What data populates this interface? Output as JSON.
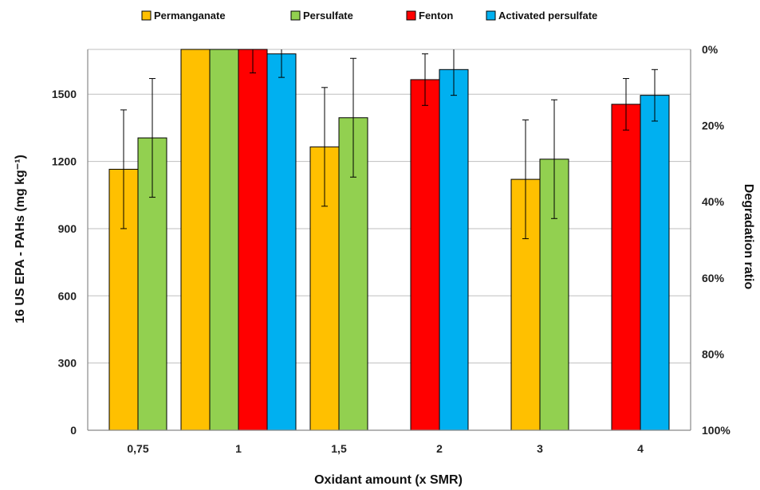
{
  "chart_data": {
    "type": "bar",
    "categories": [
      "0,75",
      "1",
      "1,5",
      "2",
      "3",
      "4"
    ],
    "xlabel": "Oxidant amount (x SMR)",
    "ylabel": "16 US EPA - PAHs (mg kg⁻¹)",
    "y2label": "Degradation ratio",
    "ylim": [
      0,
      1700
    ],
    "yticks": [
      "0",
      "300",
      "600",
      "900",
      "1200",
      "1500"
    ],
    "y2ticks": [
      "0%",
      "20%",
      "40%",
      "60%",
      "80%",
      "100%"
    ],
    "grid": true,
    "legend_position": "top",
    "series": [
      {
        "name": "Permanganate",
        "color": "#FFC000",
        "values": [
          1165,
          1700,
          1265,
          null,
          1120,
          null
        ],
        "err": [
          265,
          0,
          265,
          null,
          265,
          null
        ]
      },
      {
        "name": "Persulfate",
        "color": "#92D050",
        "values": [
          1305,
          1700,
          1395,
          null,
          1210,
          null
        ],
        "err": [
          265,
          0,
          265,
          null,
          265,
          null
        ]
      },
      {
        "name": "Fenton",
        "color": "#FF0000",
        "values": [
          null,
          1700,
          null,
          1565,
          null,
          1455
        ],
        "err": [
          null,
          105,
          null,
          115,
          null,
          115
        ]
      },
      {
        "name": "Activated persulfate",
        "color": "#00B0F0",
        "values": [
          null,
          1680,
          null,
          1610,
          null,
          1495
        ],
        "err": [
          null,
          105,
          null,
          115,
          null,
          115
        ]
      }
    ]
  }
}
